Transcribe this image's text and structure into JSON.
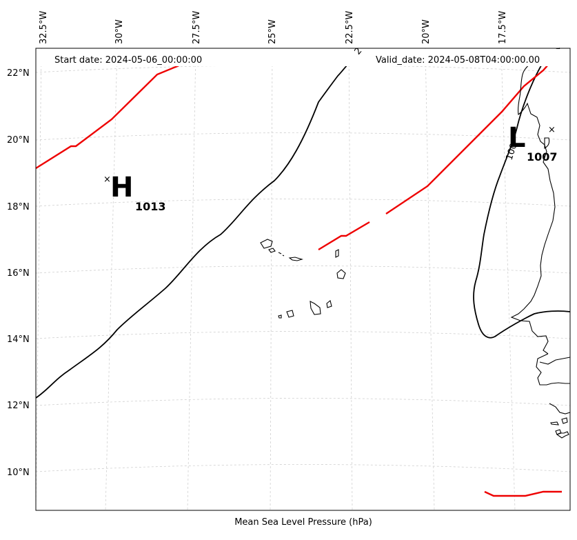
{
  "map": {
    "start_date": "Start date: 2024-05-06_00:00:00",
    "valid_date": "Valid_date: 2024-05-08T04:00:00.00",
    "xlabel": "Mean Sea Level Pressure (hPa)",
    "lon_ticks": [
      "32.5°W",
      "30°W",
      "27.5°W",
      "25°W",
      "22.5°W",
      "20°W",
      "17.5°W"
    ],
    "lat_ticks": [
      "22°N",
      "20°N",
      "18°N",
      "16°N",
      "14°N",
      "12°N",
      "10°N"
    ],
    "isobar_labels": [
      "2",
      "100"
    ],
    "pressure_centres": [
      {
        "type": "high",
        "letter": "H",
        "value": "1013",
        "marker": "×"
      },
      {
        "type": "low",
        "letter": "L",
        "value": "1007",
        "marker": "×"
      }
    ],
    "colors": {
      "isobar": "#000000",
      "front": "#ee0000",
      "grid": "#cfcfcf",
      "coast": "#000000"
    }
  }
}
